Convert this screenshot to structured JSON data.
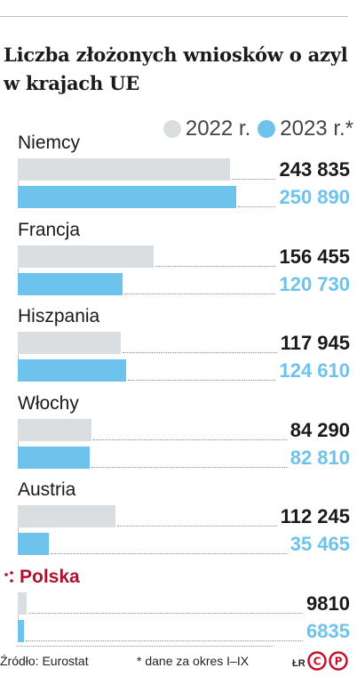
{
  "chart_data": {
    "type": "bar",
    "orientation": "horizontal",
    "title": "Liczba złożonych wniosków o azyl w krajach UE",
    "categories": [
      "Niemcy",
      "Francja",
      "Hiszpania",
      "Włochy",
      "Austria",
      "Polska"
    ],
    "highlight_category": "Polska",
    "series": [
      {
        "name": "2022 r.",
        "color": "#dbdee1",
        "value_color": "#1a1a1a",
        "values": [
          243835,
          156455,
          117945,
          84290,
          112245,
          9810
        ],
        "labels": [
          "243 835",
          "156 455",
          "117 945",
          "84 290",
          "112 245",
          "9810"
        ]
      },
      {
        "name": "2023 r.*",
        "color": "#6ec3ed",
        "value_color": "#6ec3ed",
        "values": [
          250890,
          120730,
          124610,
          82810,
          35465,
          6835
        ],
        "labels": [
          "250 890",
          "120 730",
          "124 610",
          "82 810",
          "35 465",
          "6835"
        ]
      }
    ],
    "xlim": [
      0,
      250890
    ],
    "legend_position": "top-right",
    "grid": false
  },
  "legend": [
    {
      "label": "2022 r.",
      "color": "#dbdee1"
    },
    {
      "label": "2023 r.*",
      "color": "#6ec3ed"
    }
  ],
  "footer": {
    "source": "Źródło: Eurostat",
    "note": "* dane za okres I–IX",
    "credit": "ŁR"
  },
  "colors": {
    "highlight": "#b0102b",
    "text": "#1a1a1a"
  },
  "icons": {
    "highlight_marker": "dots-marker-icon",
    "logo": "cp-logo-icon"
  }
}
